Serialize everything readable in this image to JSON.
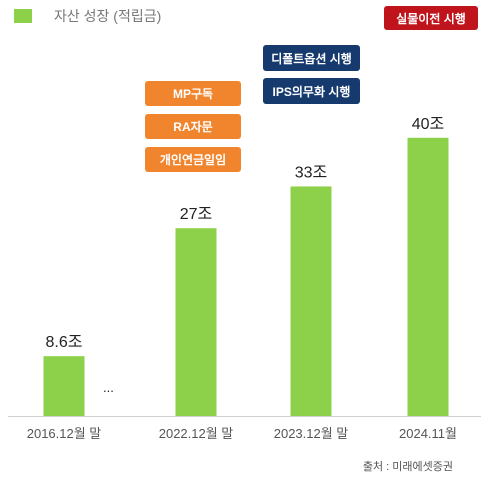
{
  "legend": {
    "label": "자산 성장 (적립금)",
    "color": "#8dd14b"
  },
  "tags": {
    "top_right": "실물이전 시행",
    "default_option": "디폴트옵션 시행",
    "ips": "IPS의무화 시행",
    "mp": "MP구독",
    "ra": "RA자문",
    "personal": "개인연금일임"
  },
  "tag_colors": {
    "red": "#c0141c",
    "navy": "#173a6e",
    "orange": "#f0852d"
  },
  "ellipsis": "...",
  "source": "출처 : 미래에셋증권",
  "chart_data": {
    "type": "bar",
    "categories": [
      "2016.12월 말",
      "2022.12월 말",
      "2023.12월 말",
      "2024.11월"
    ],
    "values": [
      8.6,
      27,
      33,
      40
    ],
    "value_labels": [
      "8.6조",
      "27조",
      "33조",
      "40조"
    ],
    "ylim": [
      0,
      45
    ],
    "grid": false,
    "bar_color": "#8dd14b"
  }
}
